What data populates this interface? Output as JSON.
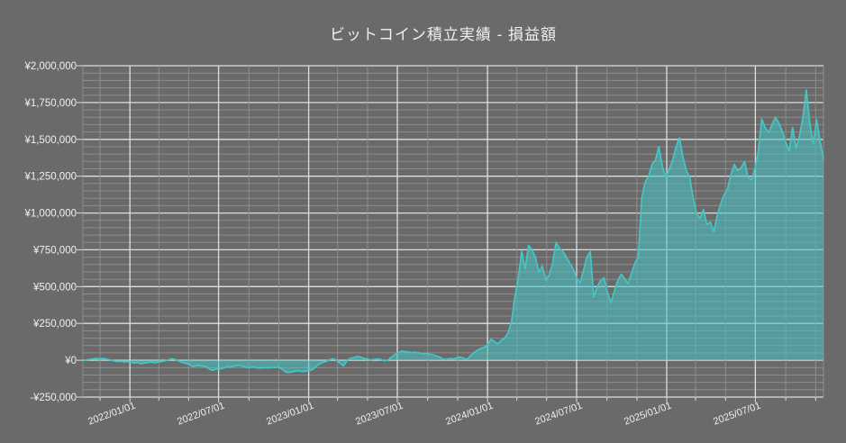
{
  "title": "ビットコイン積立実績 - 損益額",
  "chart_data": {
    "type": "area",
    "title": "ビットコイン積立実績 - 損益額",
    "series_name": "損益額",
    "currency": "JPY",
    "legend": "none",
    "grid": true,
    "ylim": [
      -250000,
      2000000
    ],
    "y_tick_step": 250000,
    "y_minor_step": 50000,
    "y_tick_labels": [
      "¥2,000,000",
      "¥1,750,000",
      "¥1,500,000",
      "¥1,250,000",
      "¥1,000,000",
      "¥750,000",
      "¥500,000",
      "¥250,000",
      "¥0",
      "-¥250,000"
    ],
    "x_tick_labels": [
      "2022/01/01",
      "2022/07/01",
      "2023/01/01",
      "2023/07/01",
      "2024/01/01",
      "2024/07/01",
      "2025/01/01",
      "2025/07/01"
    ],
    "x_minor_interval_months": 2,
    "start_date": "2021-09-27",
    "interval_days": 7,
    "values": [
      0,
      2000,
      6000,
      10000,
      12000,
      9000,
      13000,
      7000,
      2000,
      -4000,
      -9000,
      -7000,
      -11000,
      -9000,
      -14000,
      -19000,
      -16000,
      -23000,
      -18000,
      -15000,
      -12000,
      -17000,
      -11000,
      -8000,
      -4000,
      3000,
      10000,
      4000,
      -6000,
      -14000,
      -22000,
      -26000,
      -44000,
      -38000,
      -36000,
      -40000,
      -45000,
      -62000,
      -68000,
      -58000,
      -60000,
      -54000,
      -44000,
      -47000,
      -40000,
      -36000,
      -34000,
      -46000,
      -50000,
      -48000,
      -44000,
      -54000,
      -52000,
      -50000,
      -52000,
      -48000,
      -50000,
      -46000,
      -58000,
      -78000,
      -84000,
      -79000,
      -74000,
      -72000,
      -77000,
      -73000,
      -70000,
      -63000,
      -42000,
      -25000,
      -14000,
      -8000,
      4000,
      10000,
      2000,
      -20000,
      -38000,
      -5000,
      12000,
      18000,
      25000,
      22000,
      12000,
      8000,
      2000,
      6000,
      9000,
      4000,
      -4000,
      2000,
      22000,
      38000,
      52000,
      62000,
      58000,
      55000,
      52000,
      55000,
      50000,
      45000,
      48000,
      42000,
      38000,
      30000,
      22000,
      8000,
      5000,
      12000,
      9000,
      16000,
      22000,
      14000,
      6000,
      28000,
      50000,
      68000,
      80000,
      86000,
      105000,
      142000,
      128000,
      112000,
      135000,
      150000,
      185000,
      260000,
      430000,
      560000,
      740000,
      620000,
      780000,
      750000,
      700000,
      600000,
      640000,
      545000,
      580000,
      660000,
      799000,
      760000,
      740000,
      700000,
      660000,
      620000,
      560000,
      524000,
      610000,
      700000,
      738000,
      430000,
      500000,
      540000,
      560000,
      460000,
      390000,
      470000,
      540000,
      585000,
      555000,
      520000,
      590000,
      660000,
      700000,
      1100000,
      1210000,
      1250000,
      1330000,
      1360000,
      1450000,
      1320000,
      1240000,
      1300000,
      1360000,
      1450000,
      1510000,
      1380000,
      1287000,
      1244000,
      1100000,
      1000000,
      963000,
      1024000,
      921000,
      940000,
      872000,
      980000,
      1060000,
      1122000,
      1160000,
      1260000,
      1330000,
      1287000,
      1310000,
      1350000,
      1240000,
      1225000,
      1300000,
      1420000,
      1640000,
      1580000,
      1545000,
      1600000,
      1650000,
      1610000,
      1555000,
      1480000,
      1420000,
      1580000,
      1440000,
      1520000,
      1652000,
      1835000,
      1610000,
      1470000,
      1634000,
      1488000,
      1366000
    ],
    "colors": {
      "background": "#6a6a6a",
      "line": "#46c5c5",
      "fill": "rgba(70,197,197,0.55)",
      "grid_minor": "#8e8e8e",
      "grid_major": "#dedede",
      "text": "#f0f0f0"
    }
  }
}
